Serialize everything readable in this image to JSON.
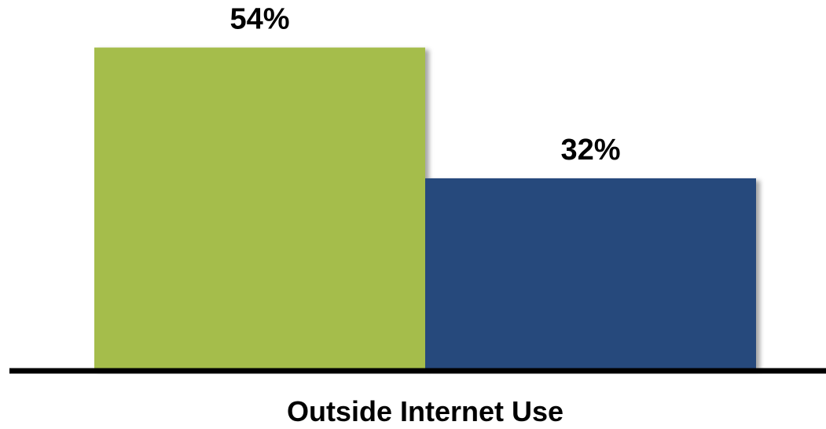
{
  "chart_data": {
    "type": "bar",
    "categories": [
      "Outside Internet Use"
    ],
    "series": [
      {
        "values": [
          54
        ],
        "color": "#a5bd4c",
        "data_label": "54%"
      },
      {
        "values": [
          32
        ],
        "color": "#264a7c",
        "data_label": "32%"
      }
    ],
    "unit": "%",
    "title": "",
    "xlabel": "",
    "ylabel": "",
    "ylim": [
      0,
      62
    ],
    "grid": false,
    "legend": "none",
    "axis_color": "#000000"
  }
}
